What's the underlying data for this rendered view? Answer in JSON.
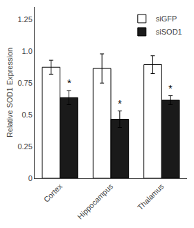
{
  "chart_data": {
    "type": "bar",
    "categories": [
      "Cortex",
      "Hippocampus",
      "Thalamus"
    ],
    "series": [
      {
        "name": "siGFP",
        "color": "#ffffff",
        "values": [
          0.875,
          0.865,
          0.895
        ],
        "errors": [
          0.055,
          0.115,
          0.07
        ]
      },
      {
        "name": "siSOD1",
        "color": "#1a1a1a",
        "values": [
          0.635,
          0.465,
          0.615
        ],
        "errors": [
          0.055,
          0.065,
          0.035
        ]
      }
    ],
    "ylabel": "Relative SOD1 Expression",
    "ylim": [
      0,
      1.35
    ],
    "yticks": [
      0,
      0.25,
      0.5,
      0.75,
      {
        "value": 1.0,
        "label": "1.0"
      },
      1.25
    ],
    "grid": false,
    "legend": "upper right",
    "annotations": [
      {
        "category": "Cortex",
        "series": "siSOD1",
        "text": "*"
      },
      {
        "category": "Hippocampus",
        "series": "siSOD1",
        "text": "*"
      },
      {
        "category": "Thalamus",
        "series": "siSOD1",
        "text": "*"
      }
    ]
  }
}
